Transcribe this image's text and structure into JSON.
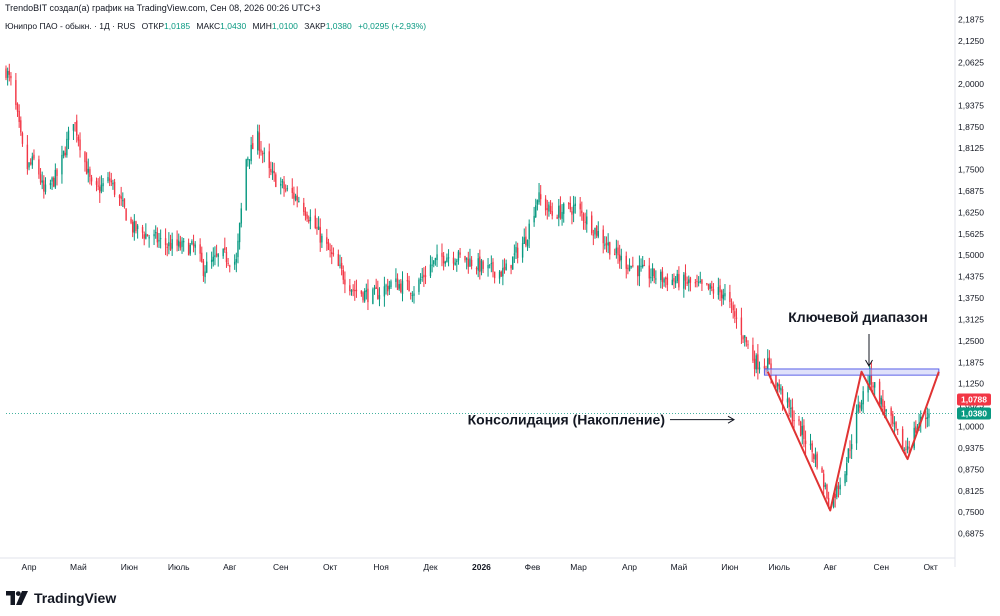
{
  "header": {
    "attribution": "TrendoBIT создал(а) график на TradingView.com, Сен 08, 2026 00:26 UTC+3",
    "symbol": "Юнипро ПАО - обыкн. · 1Д · RUS",
    "open_label": "ОТКР",
    "open_value": "1,0185",
    "high_label": "МАКС",
    "high_value": "1,0430",
    "low_label": "МИН",
    "low_value": "1,0100",
    "close_label": "ЗАКР",
    "close_value": "1,0380",
    "change_value": "+0,0295 (+2,93%)"
  },
  "footer": {
    "brand": "TradingView"
  },
  "colors": {
    "up": "#089981",
    "down": "#f23645",
    "annotation": "#e03333",
    "zone_fill": "#c5c9f5",
    "zone_stroke": "#5b61e8"
  },
  "chart_data": {
    "type": "candlestick",
    "title": "",
    "xlabel": "",
    "ylabel": "",
    "ylim": [
      0.625,
      2.21
    ],
    "y_ticks": [
      "2,1875",
      "2,1250",
      "2,0625",
      "2,0000",
      "1,9375",
      "1,8750",
      "1,8125",
      "1,7500",
      "1,6875",
      "1,6250",
      "1,5625",
      "1,5000",
      "1,4375",
      "1,3750",
      "1,3125",
      "1,2500",
      "1,1875",
      "1,1250",
      "1,0625",
      "1,0000",
      "0,9375",
      "0,8750",
      "0,8125",
      "0,7500",
      "0,6875"
    ],
    "x_ticks": [
      "Апр",
      "Май",
      "Июн",
      "Июль",
      "Авг",
      "Сен",
      "Окт",
      "Ноя",
      "Дек",
      "2026",
      "Фев",
      "Мар",
      "Апр",
      "Май",
      "Июн",
      "Июль",
      "Авг",
      "Сен",
      "Окт"
    ],
    "x_range": [
      "2025-03-18",
      "2026-10-14"
    ],
    "key_points": [
      {
        "date": "2025-03-18",
        "close": 2.04
      },
      {
        "date": "2025-03-22",
        "close": 1.99
      },
      {
        "date": "2025-03-30",
        "close": 1.75
      },
      {
        "date": "2025-04-05",
        "close": 1.78
      },
      {
        "date": "2025-04-10",
        "close": 1.68
      },
      {
        "date": "2025-04-19",
        "close": 1.74
      },
      {
        "date": "2025-04-28",
        "close": 1.9
      },
      {
        "date": "2025-05-10",
        "close": 1.68
      },
      {
        "date": "2025-05-20",
        "close": 1.72
      },
      {
        "date": "2025-06-03",
        "close": 1.58
      },
      {
        "date": "2025-06-24",
        "close": 1.53
      },
      {
        "date": "2025-07-11",
        "close": 1.52
      },
      {
        "date": "2025-07-16",
        "close": 1.46
      },
      {
        "date": "2025-07-27",
        "close": 1.5
      },
      {
        "date": "2025-08-05",
        "close": 1.48
      },
      {
        "date": "2025-08-11",
        "close": 1.78
      },
      {
        "date": "2025-08-18",
        "close": 1.84
      },
      {
        "date": "2025-08-25",
        "close": 1.74
      },
      {
        "date": "2025-09-04",
        "close": 1.69
      },
      {
        "date": "2025-09-13",
        "close": 1.66
      },
      {
        "date": "2025-09-22",
        "close": 1.58
      },
      {
        "date": "2025-10-05",
        "close": 1.47
      },
      {
        "date": "2025-10-15",
        "close": 1.4
      },
      {
        "date": "2025-10-27",
        "close": 1.38
      },
      {
        "date": "2025-11-08",
        "close": 1.42
      },
      {
        "date": "2025-11-21",
        "close": 1.4
      },
      {
        "date": "2025-12-01",
        "close": 1.47
      },
      {
        "date": "2025-12-10",
        "close": 1.5
      },
      {
        "date": "2025-12-22",
        "close": 1.49
      },
      {
        "date": "2026-01-03",
        "close": 1.46
      },
      {
        "date": "2026-01-15",
        "close": 1.45
      },
      {
        "date": "2026-01-28",
        "close": 1.55
      },
      {
        "date": "2026-02-04",
        "close": 1.67
      },
      {
        "date": "2026-02-13",
        "close": 1.62
      },
      {
        "date": "2026-02-27",
        "close": 1.64
      },
      {
        "date": "2026-03-12",
        "close": 1.57
      },
      {
        "date": "2026-03-26",
        "close": 1.49
      },
      {
        "date": "2026-04-09",
        "close": 1.45
      },
      {
        "date": "2026-04-23",
        "close": 1.43
      },
      {
        "date": "2026-05-06",
        "close": 1.42
      },
      {
        "date": "2026-05-18",
        "close": 1.4
      },
      {
        "date": "2026-05-28",
        "close": 1.39
      },
      {
        "date": "2026-06-08",
        "close": 1.28
      },
      {
        "date": "2026-06-16",
        "close": 1.19
      },
      {
        "date": "2026-06-24",
        "close": 1.18
      },
      {
        "date": "2026-07-06",
        "close": 1.06
      },
      {
        "date": "2026-07-15",
        "close": 0.98
      },
      {
        "date": "2026-07-24",
        "close": 0.9
      },
      {
        "date": "2026-08-01",
        "close": 0.77
      },
      {
        "date": "2026-08-10",
        "close": 0.88
      },
      {
        "date": "2026-08-18",
        "close": 1.05
      },
      {
        "date": "2026-08-25",
        "close": 1.15
      },
      {
        "date": "2026-09-01",
        "close": 1.07
      },
      {
        "date": "2026-09-08",
        "close": 1.0
      },
      {
        "date": "2026-09-15",
        "close": 0.93
      },
      {
        "date": "2026-09-24",
        "close": 1.01
      },
      {
        "date": "2026-09-30",
        "close": 1.038
      }
    ],
    "price_labels": [
      {
        "value": 1.0788,
        "text": "1,0788",
        "color": "#f23645"
      },
      {
        "value": 1.038,
        "text": "1,0380",
        "color": "#089981"
      }
    ],
    "annotations": {
      "key_range": {
        "label": "Ключевой диапазон",
        "from": "2026-06-22",
        "to": "2026-10-06",
        "y_low": 1.15,
        "y_high": 1.168
      },
      "consolidation": {
        "label": "Консолидация (Накопление)"
      },
      "pattern_line": [
        {
          "date": "2026-06-24",
          "value": 1.16
        },
        {
          "date": "2026-08-01",
          "value": 0.755
        },
        {
          "date": "2026-08-20",
          "value": 1.16
        },
        {
          "date": "2026-09-17",
          "value": 0.905
        },
        {
          "date": "2026-10-06",
          "value": 1.16
        }
      ]
    }
  }
}
